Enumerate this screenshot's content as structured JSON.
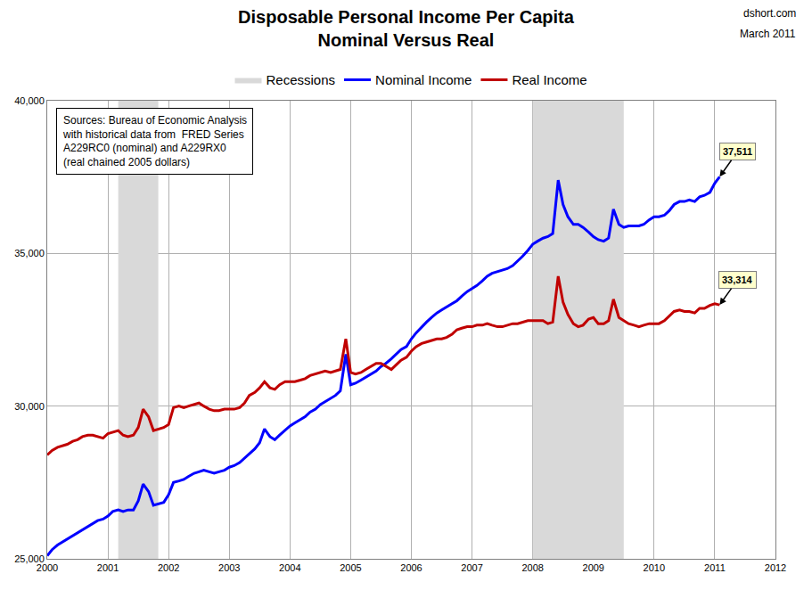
{
  "chart_data": {
    "type": "line",
    "title": "Disposable Personal Income Per Capita",
    "subtitle": "Nominal Versus Real",
    "credit": "dshort.com",
    "date": "March 2011",
    "note": [
      "Sources: Bureau of Economic Analysis",
      "with historical data from  FRED Series",
      "A229RC0 (nominal) and A229RX0",
      "(real chained 2005 dollars)"
    ],
    "legend": "top",
    "grid": true,
    "xlim": [
      2000,
      2012
    ],
    "xticks": [
      2000,
      2001,
      2002,
      2003,
      2004,
      2005,
      2006,
      2007,
      2008,
      2009,
      2010,
      2011,
      2012
    ],
    "ylim": [
      25000,
      40000
    ],
    "yticks": [
      {
        "value": 25000,
        "label": "25,000"
      },
      {
        "value": 30000,
        "label": "30,000"
      },
      {
        "value": 35000,
        "label": "35,000"
      },
      {
        "value": 40000,
        "label": "40,000"
      }
    ],
    "recessions": {
      "name": "Recessions",
      "color": "#d9d9d9",
      "periods": [
        [
          2001.17,
          2001.83
        ],
        [
          2008.0,
          2009.5
        ]
      ]
    },
    "x": [
      2000,
      2000.08,
      2000.17,
      2000.25,
      2000.33,
      2000.42,
      2000.5,
      2000.58,
      2000.67,
      2000.75,
      2000.83,
      2000.92,
      2001,
      2001.08,
      2001.17,
      2001.25,
      2001.33,
      2001.42,
      2001.5,
      2001.58,
      2001.67,
      2001.75,
      2001.83,
      2001.92,
      2002,
      2002.08,
      2002.17,
      2002.25,
      2002.33,
      2002.42,
      2002.5,
      2002.58,
      2002.67,
      2002.75,
      2002.83,
      2002.92,
      2003,
      2003.08,
      2003.17,
      2003.25,
      2003.33,
      2003.42,
      2003.5,
      2003.58,
      2003.67,
      2003.75,
      2003.83,
      2003.92,
      2004,
      2004.08,
      2004.17,
      2004.25,
      2004.33,
      2004.42,
      2004.5,
      2004.58,
      2004.67,
      2004.75,
      2004.83,
      2004.92,
      2005,
      2005.08,
      2005.17,
      2005.25,
      2005.33,
      2005.42,
      2005.5,
      2005.58,
      2005.67,
      2005.75,
      2005.83,
      2005.92,
      2006,
      2006.08,
      2006.17,
      2006.25,
      2006.33,
      2006.42,
      2006.5,
      2006.58,
      2006.67,
      2006.75,
      2006.83,
      2006.92,
      2007,
      2007.08,
      2007.17,
      2007.25,
      2007.33,
      2007.42,
      2007.5,
      2007.58,
      2007.67,
      2007.75,
      2007.83,
      2007.92,
      2008,
      2008.08,
      2008.17,
      2008.25,
      2008.33,
      2008.42,
      2008.5,
      2008.58,
      2008.67,
      2008.75,
      2008.83,
      2008.92,
      2009,
      2009.08,
      2009.17,
      2009.25,
      2009.33,
      2009.42,
      2009.5,
      2009.58,
      2009.67,
      2009.75,
      2009.83,
      2009.92,
      2010,
      2010.08,
      2010.17,
      2010.25,
      2010.33,
      2010.42,
      2010.5,
      2010.58,
      2010.67,
      2010.75,
      2010.83,
      2010.92,
      2011,
      2011.08
    ],
    "series": [
      {
        "name": "Nominal Income",
        "color": "#0000ff",
        "values": [
          25100,
          25300,
          25450,
          25550,
          25650,
          25750,
          25850,
          25950,
          26050,
          26150,
          26250,
          26300,
          26400,
          26550,
          26600,
          26550,
          26600,
          26600,
          26900,
          27450,
          27200,
          26750,
          26800,
          26850,
          27100,
          27500,
          27550,
          27600,
          27700,
          27800,
          27850,
          27900,
          27850,
          27800,
          27850,
          27900,
          28000,
          28050,
          28150,
          28300,
          28450,
          28600,
          28800,
          29250,
          29000,
          28900,
          29050,
          29200,
          29350,
          29450,
          29550,
          29650,
          29800,
          29900,
          30050,
          30150,
          30250,
          30350,
          30500,
          31700,
          30700,
          30750,
          30850,
          30950,
          31050,
          31150,
          31300,
          31400,
          31550,
          31700,
          31850,
          31950,
          32200,
          32400,
          32600,
          32750,
          32900,
          33050,
          33150,
          33250,
          33350,
          33450,
          33600,
          33750,
          33850,
          33950,
          34100,
          34250,
          34350,
          34400,
          34450,
          34500,
          34600,
          34750,
          34900,
          35100,
          35300,
          35400,
          35500,
          35550,
          35650,
          37400,
          36600,
          36200,
          35950,
          35950,
          35850,
          35700,
          35550,
          35450,
          35400,
          35500,
          36450,
          35950,
          35850,
          35900,
          35900,
          35900,
          35950,
          36100,
          36200,
          36200,
          36250,
          36400,
          36600,
          36700,
          36700,
          36750,
          36700,
          36850,
          36900,
          37000,
          37300,
          37511
        ]
      },
      {
        "name": "Real Income",
        "color": "#c00000",
        "values": [
          28400,
          28550,
          28650,
          28700,
          28750,
          28850,
          28900,
          29000,
          29050,
          29050,
          29000,
          28950,
          29100,
          29150,
          29200,
          29050,
          29000,
          29050,
          29300,
          29900,
          29650,
          29200,
          29250,
          29300,
          29400,
          29950,
          30000,
          29950,
          30000,
          30050,
          30100,
          30000,
          29900,
          29850,
          29850,
          29900,
          29900,
          29900,
          29950,
          30100,
          30350,
          30450,
          30600,
          30800,
          30600,
          30550,
          30700,
          30800,
          30800,
          30800,
          30850,
          30900,
          31000,
          31050,
          31100,
          31150,
          31100,
          31150,
          31200,
          32200,
          31100,
          31050,
          31100,
          31200,
          31300,
          31400,
          31400,
          31300,
          31200,
          31350,
          31500,
          31600,
          31800,
          31950,
          32050,
          32100,
          32150,
          32200,
          32200,
          32250,
          32350,
          32500,
          32550,
          32600,
          32600,
          32650,
          32650,
          32700,
          32650,
          32600,
          32600,
          32650,
          32700,
          32700,
          32750,
          32800,
          32800,
          32800,
          32800,
          32700,
          32750,
          34250,
          33400,
          33000,
          32700,
          32600,
          32650,
          32850,
          32900,
          32700,
          32700,
          32800,
          33500,
          32900,
          32800,
          32700,
          32650,
          32600,
          32650,
          32700,
          32700,
          32700,
          32800,
          32950,
          33100,
          33150,
          33100,
          33100,
          33050,
          33200,
          33200,
          33300,
          33350,
          33314
        ]
      }
    ],
    "annotations": [
      {
        "text": "37,511",
        "x": 2011.08,
        "y": 37511
      },
      {
        "text": "33,314",
        "x": 2011.08,
        "y": 33314
      }
    ]
  }
}
